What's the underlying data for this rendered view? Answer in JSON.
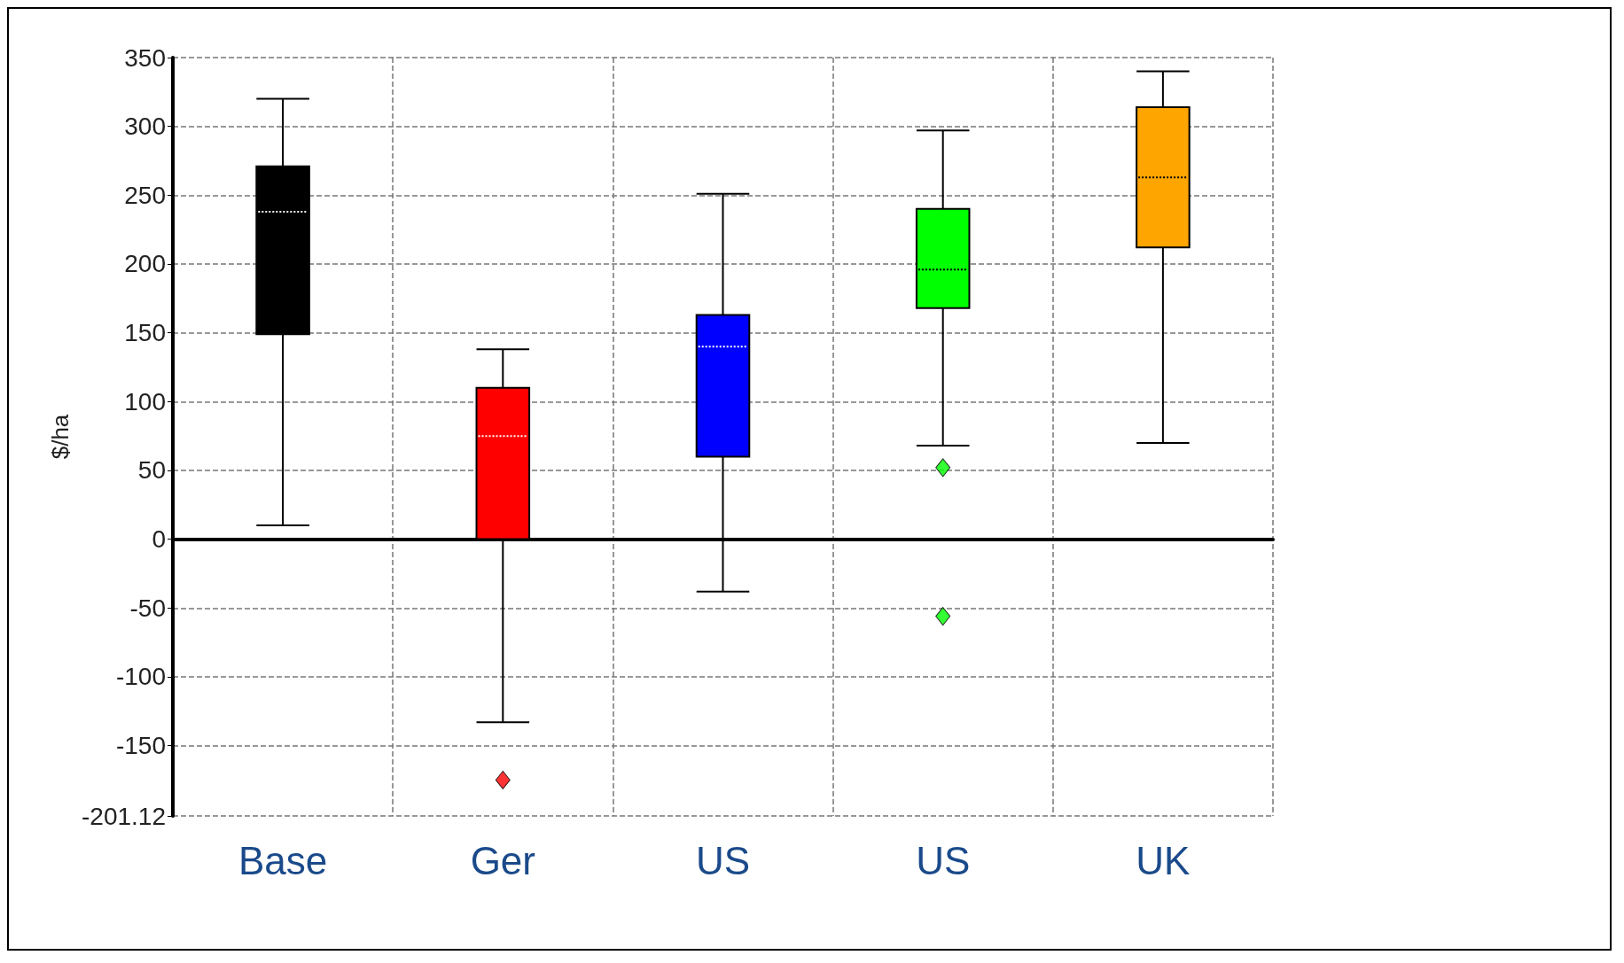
{
  "chart_data": {
    "type": "box",
    "ylabel": "$/ha",
    "categories": [
      "Base",
      "Ger",
      "US",
      "US",
      "UK"
    ],
    "colors": [
      "#000000",
      "#ff0000",
      "#0000ff",
      "#00ff00",
      "#ffa500"
    ],
    "boxes": [
      {
        "low": 10,
        "q1": 149,
        "median": 238,
        "q3": 271,
        "high": 320
      },
      {
        "low": -133,
        "q1": 0,
        "median": 75,
        "q3": 110,
        "high": 138,
        "outliers": [
          -175
        ]
      },
      {
        "low": -38,
        "q1": 60,
        "median": 140,
        "q3": 163,
        "high": 251
      },
      {
        "low": 68,
        "q1": 168,
        "median": 196,
        "q3": 240,
        "high": 297,
        "outliers": [
          52,
          -56
        ]
      },
      {
        "low": 70,
        "q1": 212,
        "median": 263,
        "q3": 314,
        "high": 340
      }
    ],
    "ylim": [
      -201.12,
      350
    ],
    "yticks": [
      -201.12,
      -150,
      -100,
      -50,
      0,
      50,
      100,
      150,
      200,
      250,
      300,
      350
    ],
    "grid": true
  }
}
